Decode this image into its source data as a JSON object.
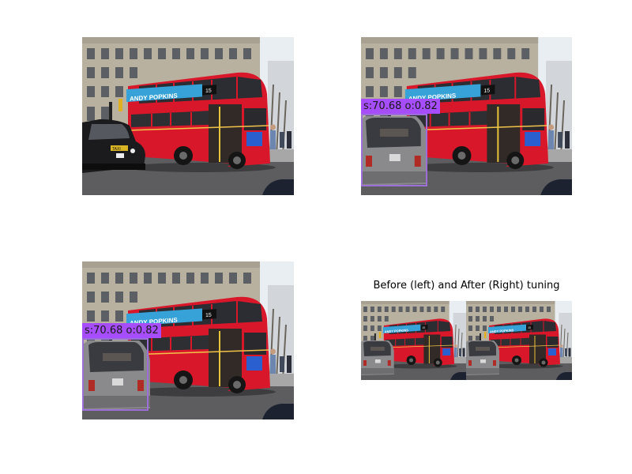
{
  "figure": {
    "subtitle": "Before (left) and After (Right) tuning",
    "detections": {
      "panel_2": {
        "label": "s:70.68 o:0.82"
      },
      "panel_3": {
        "label": "s:70.68 o:0.82"
      }
    },
    "bus_banner_text": "ANDY POPKINS",
    "bus_route_number": "15",
    "taxi_sign_text": "TAXI",
    "colors": {
      "bus_red": "#d8182a",
      "detection_label_bg": "#a64dff",
      "detection_box": "#9b6fd6"
    }
  }
}
